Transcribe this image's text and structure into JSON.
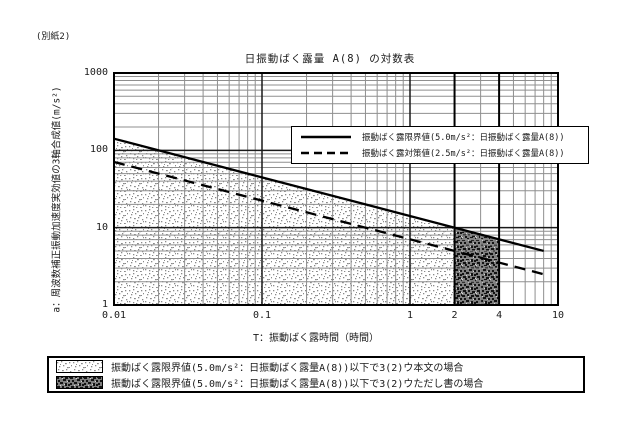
{
  "page": {
    "note": "(別紙2)"
  },
  "chart_data": {
    "type": "line",
    "title": "日振動ばく露量 A(8) の対数表",
    "x_axis": {
      "label": "T：振動ばく露時間（時間）",
      "scale": "log",
      "min": 0.01,
      "max": 10,
      "ticks": [
        0.01,
        0.1,
        1,
        2,
        4,
        10
      ],
      "tick_labels": [
        "0.01",
        "0.1",
        "1",
        "2",
        "4",
        "10"
      ],
      "emphasized_gridlines": [
        2,
        4
      ]
    },
    "y_axis": {
      "label": "a：周波数補正振動加速度実効値の3軸合成値(m/s²)",
      "scale": "log",
      "min": 1,
      "max": 1000,
      "ticks": [
        1,
        10,
        100,
        1000
      ],
      "tick_labels": [
        "1",
        "10",
        "100",
        "1000"
      ]
    },
    "grid": {
      "minor_gridlines": true,
      "minor_multipliers": [
        2,
        3,
        4,
        5,
        6,
        7,
        8,
        9
      ]
    },
    "legend_position": "top-right-inside",
    "series": [
      {
        "name": "振動ばく露限界値(5.0m/s²：日振動ばく露量A(8))",
        "style": "solid",
        "points": [
          [
            0.01,
            141.4
          ],
          [
            8,
            5.0
          ]
        ]
      },
      {
        "name": "振動ばく露対策値(2.5m/s²：日振動ばく露量A(8))",
        "style": "dashed",
        "points": [
          [
            0.01,
            70.7
          ],
          [
            8,
            2.5
          ]
        ]
      }
    ],
    "regions": [
      {
        "name": "region-below-limit-main-text",
        "pattern": "pat-light",
        "x_range": [
          0.01,
          2
        ],
        "bounded_above_by_series": 0,
        "label": "振動ばく露限界値(5.0m/s²：日振動ばく露量A(8))以下で3(2)ウ本文の場合"
      },
      {
        "name": "region-below-limit-proviso",
        "pattern": "pat-dark",
        "x_range": [
          2,
          4
        ],
        "bounded_above_by_series": 0,
        "label": "振動ばく露限界値(5.0m/s²：日振動ばく露量A(8))以下で3(2)ウただし書の場合"
      }
    ]
  },
  "legend": {
    "items": [
      {
        "sample": "solid-line",
        "label": "振動ばく露限界値(5.0m/s²：日振動ばく露量A(8))"
      },
      {
        "sample": "dashed-line",
        "label": "振動ばく露対策値(2.5m/s²：日振動ばく露量A(8))"
      }
    ]
  },
  "bottom_legend": {
    "items": [
      {
        "swatch": "light-stipple",
        "label": "振動ばく露限界値(5.0m/s²：日振動ばく露量A(8))以下で3(2)ウ本文の場合"
      },
      {
        "swatch": "dark-stipple",
        "label": "振動ばく露限界値(5.0m/s²：日振動ばく露量A(8))以下で3(2)ウただし書の場合"
      }
    ]
  }
}
